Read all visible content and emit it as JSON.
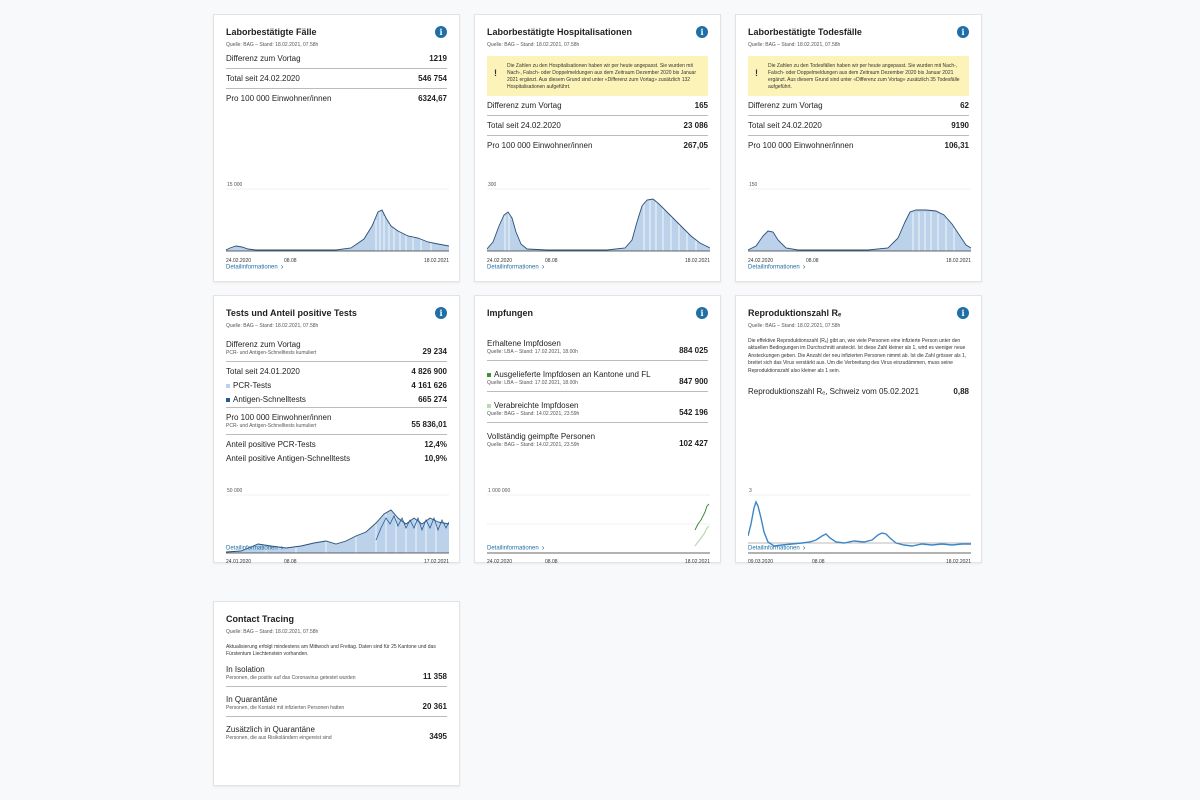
{
  "cards": {
    "cases": {
      "title": "Laborbestätigte Fälle",
      "source": "Quelle: BAG – Stand: 18.02.2021, 07.58h",
      "rows": [
        {
          "label": "Differenz zum Vortag",
          "value": "1219"
        },
        {
          "label": "Total seit 24.02.2020",
          "value": "546 754"
        },
        {
          "label": "Pro 100 000 Einwohner/innen",
          "value": "6324,67"
        }
      ],
      "chart": {
        "ymax": "15 000",
        "x_start": "24.02.2020",
        "x_mid": "08.08",
        "x_end": "18.02.2021"
      },
      "link": "Detailinformationen"
    },
    "hosp": {
      "title": "Laborbestätigte Hospitalisationen",
      "source": "Quelle: BAG – Stand: 18.02.2021, 07.58h",
      "notice": "Die Zahlen zu den Hospitalisationen haben wir per heute angepasst. Sie wurden mit Nach-, Falsch- oder Doppelmeldungen aus dem Zeitraum Dezember 2020 bis Januar 2021 ergänzt. Aus diesem Grund sind unter «Differenz zum Vortag» zusätzlich 132 Hospitalisationen aufgeführt.",
      "rows": [
        {
          "label": "Differenz zum Vortag",
          "value": "165"
        },
        {
          "label": "Total seit 24.02.2020",
          "value": "23 086"
        },
        {
          "label": "Pro 100 000 Einwohner/innen",
          "value": "267,05"
        }
      ],
      "chart": {
        "ymax": "300",
        "x_start": "24.02.2020",
        "x_mid": "08.08",
        "x_end": "18.02.2021"
      },
      "link": "Detailinformationen"
    },
    "deaths": {
      "title": "Laborbestätigte Todesfälle",
      "source": "Quelle: BAG – Stand: 18.02.2021, 07.58h",
      "notice": "Die Zahlen zu den Todesfällen haben wir per heute angepasst. Sie wurden mit Nach-, Falsch- oder Doppelmeldungen aus dem Zeitraum Dezember 2020 bis Januar 2021 ergänzt. Aus diesem Grund sind unter «Differenz zum Vortag» zusätzlich 35 Todesfälle aufgeführt.",
      "rows": [
        {
          "label": "Differenz zum Vortag",
          "value": "62"
        },
        {
          "label": "Total seit 24.02.2020",
          "value": "9190"
        },
        {
          "label": "Pro 100 000 Einwohner/innen",
          "value": "106,31"
        }
      ],
      "chart": {
        "ymax": "150",
        "x_start": "24.02.2020",
        "x_mid": "08.08",
        "x_end": "18.02.2021"
      },
      "link": "Detailinformationen"
    },
    "tests": {
      "title": "Tests und Anteil positive Tests",
      "source": "Quelle: BAG – Stand: 18.02.2021, 07.58h",
      "diff_label": "Differenz zum Vortag",
      "diff_sub": "PCR- und Antigen-Schnelltests kumuliert",
      "diff_value": "29 234",
      "total_label": "Total seit 24.01.2020",
      "total_value": "4 826 900",
      "pcr_label": "PCR-Tests",
      "pcr_value": "4 161 626",
      "antigen_label": "Antigen-Schnelltests",
      "antigen_value": "665 274",
      "per100k_label": "Pro 100 000 Einwohner/innen",
      "per100k_sub": "PCR- und Antigen-Schnelltests kumuliert",
      "per100k_value": "55 836,01",
      "pos_pcr_label": "Anteil positive PCR-Tests",
      "pos_pcr_value": "12,4%",
      "pos_antigen_label": "Anteil positive Antigen-Schnelltests",
      "pos_antigen_value": "10,9%",
      "chart": {
        "ymax": "50 000",
        "x_start": "24.01.2020",
        "x_mid": "08.08",
        "x_end": "17.02.2021"
      },
      "link": "Detailinformationen"
    },
    "vacc": {
      "title": "Impfungen",
      "rows": [
        {
          "label": "Erhaltene Impfdosen",
          "sub": "Quelle: LBA – Stand: 17.02.2021, 18.00h",
          "value": "884 025"
        },
        {
          "label": "Ausgelieferte Impfdosen an Kantone und FL",
          "sub": "Quelle: LBA – Stand: 17.02.2021, 18.00h",
          "value": "847 900"
        },
        {
          "label": "Verabreichte Impfdosen",
          "sub": "Quelle: BAG – Stand: 14.02.2021, 23.59h",
          "value": "542 196"
        },
        {
          "label": "Vollständig geimpfte Personen",
          "sub": "Quelle: BAG – Stand: 14.02.2021, 23.59h",
          "value": "102 427"
        }
      ],
      "chart": {
        "ymax": "1 000 000",
        "x_start": "24.02.2020",
        "x_mid": "08.08",
        "x_end": "18.02.2021"
      },
      "link": "Detailinformationen"
    },
    "repro": {
      "title": "Reproduktionszahl Rₑ",
      "source": "Quelle: BAG – Stand: 18.02.2021, 07.58h",
      "desc": "Die effektive Reproduktionszahl (Rₑ) gibt an, wie viele Personen eine infizierte Person unter den aktuellen Bedingungen im Durchschnitt ansteckt. Ist diese Zahl kleiner als 1, wird es weniger neue Ansteckungen geben. Die Anzahl der neu infizierten Personen nimmt ab. Ist die Zahl grösser als 1, breitet sich das Virus verstärkt aus. Um die Verbreitung des Virus einzudämmen, muss seine Reproduktionszahl also kleiner als 1 sein.",
      "row": {
        "label": "Reproduktionszahl Rₑ, Schweiz vom 05.02.2021",
        "value": "0,88"
      },
      "chart": {
        "ymax": "3",
        "x_start": "09.03.2020",
        "x_mid": "08.08",
        "x_end": "18.02.2021"
      },
      "link": "Detailinformationen"
    },
    "contact": {
      "title": "Contact Tracing",
      "source": "Quelle: BAG – Stand: 18.02.2021, 07.58h",
      "desc": "Aktualisierung erfolgt mindestens am Mittwoch und Freitag. Daten sind für 25 Kantone und das Fürstentum Liechtenstein vorhanden.",
      "rows": [
        {
          "label": "In Isolation",
          "sub": "Personen, die positiv auf das Coronavirus getestet wurden",
          "value": "11 358"
        },
        {
          "label": "In Quarantäne",
          "sub": "Personen, die Kontakt mit infizierten Personen hatten",
          "value": "20 361"
        },
        {
          "label": "Zusätzlich in Quarantäne",
          "sub": "Personen, die aus Risikoländern eingereist sind",
          "value": "3495"
        }
      ]
    }
  },
  "colors": {
    "accent": "#1f6fa6",
    "area": "#bcd2ea",
    "line": "#2b4f78",
    "notice": "#fbf3b8",
    "green": "#3e8f3e",
    "repro": "#3d86c6"
  }
}
